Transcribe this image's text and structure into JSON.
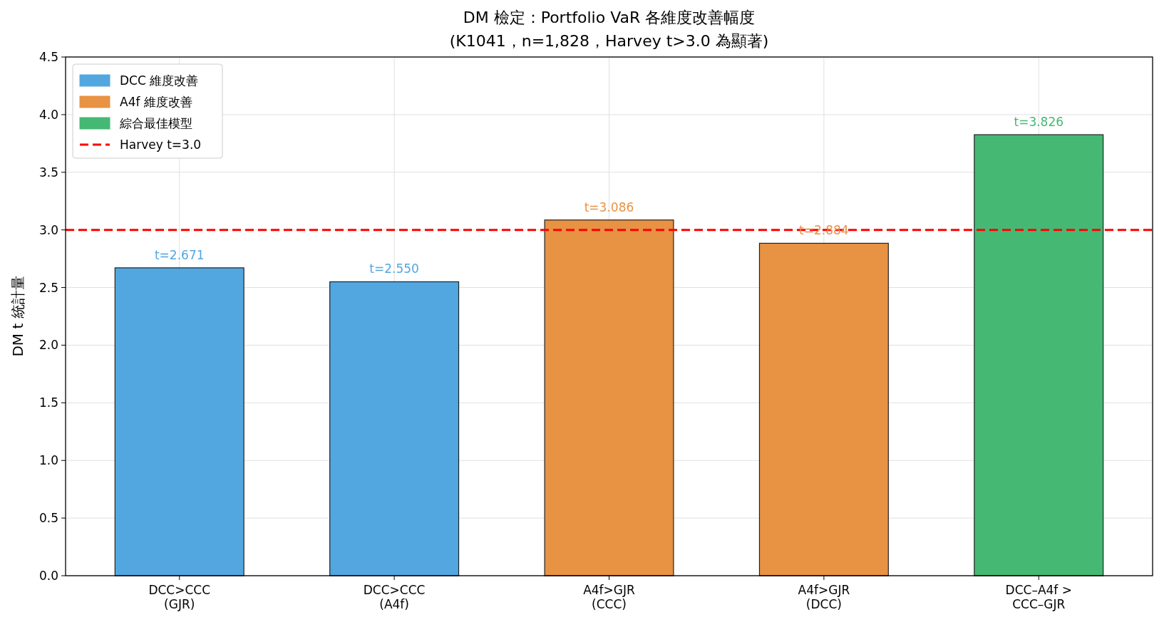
{
  "chart_data": {
    "type": "bar",
    "title": "DM 檢定：Portfolio VaR 各維度改善幅度",
    "subtitle": "(K1041，n=1,828，Harvey t>3.0 為顯著)",
    "ylabel": "DM t 統計量",
    "categories": [
      "DCC>CCC\n(GJR)",
      "DCC>CCC\n(A4f)",
      "A4f>GJR\n(CCC)",
      "A4f>GJR\n(DCC)",
      "DCC–A4f >\nCCC–GJR"
    ],
    "series": [
      {
        "name": "DCC 維度改善",
        "color": "#52a7e0",
        "values": [
          2.671,
          2.55,
          null,
          null,
          null
        ],
        "value_labels": [
          "t=2.671",
          "t=2.550",
          null,
          null,
          null
        ]
      },
      {
        "name": "A4f 維度改善",
        "color": "#e89244",
        "values": [
          null,
          null,
          3.086,
          2.884,
          null
        ],
        "value_labels": [
          null,
          null,
          "t=3.086",
          "t=2.884",
          null
        ]
      },
      {
        "name": "綜合最佳模型",
        "color": "#45b974",
        "values": [
          null,
          null,
          null,
          null,
          3.826
        ],
        "value_labels": [
          null,
          null,
          null,
          null,
          "t=3.826"
        ]
      }
    ],
    "ylim": [
      0,
      4.5
    ],
    "yticks": [
      {
        "value": 0,
        "label": "0.0"
      },
      {
        "value": 0.5,
        "label": "0.5"
      },
      {
        "value": 1,
        "label": "1.0"
      },
      {
        "value": 1.5,
        "label": "1.5"
      },
      {
        "value": 2,
        "label": "2.0"
      },
      {
        "value": 2.5,
        "label": "2.5"
      },
      {
        "value": 3,
        "label": "3.0"
      },
      {
        "value": 3.5,
        "label": "3.5"
      },
      {
        "value": 4,
        "label": "4.0"
      },
      {
        "value": 4.5,
        "label": "4.5"
      }
    ],
    "ref_lines": [
      {
        "axis": "y",
        "value": 3.0,
        "label": "Harvey t=3.0",
        "color": "#ff0000",
        "line_style": "dashed"
      }
    ],
    "grid": true,
    "legend": "top left"
  }
}
